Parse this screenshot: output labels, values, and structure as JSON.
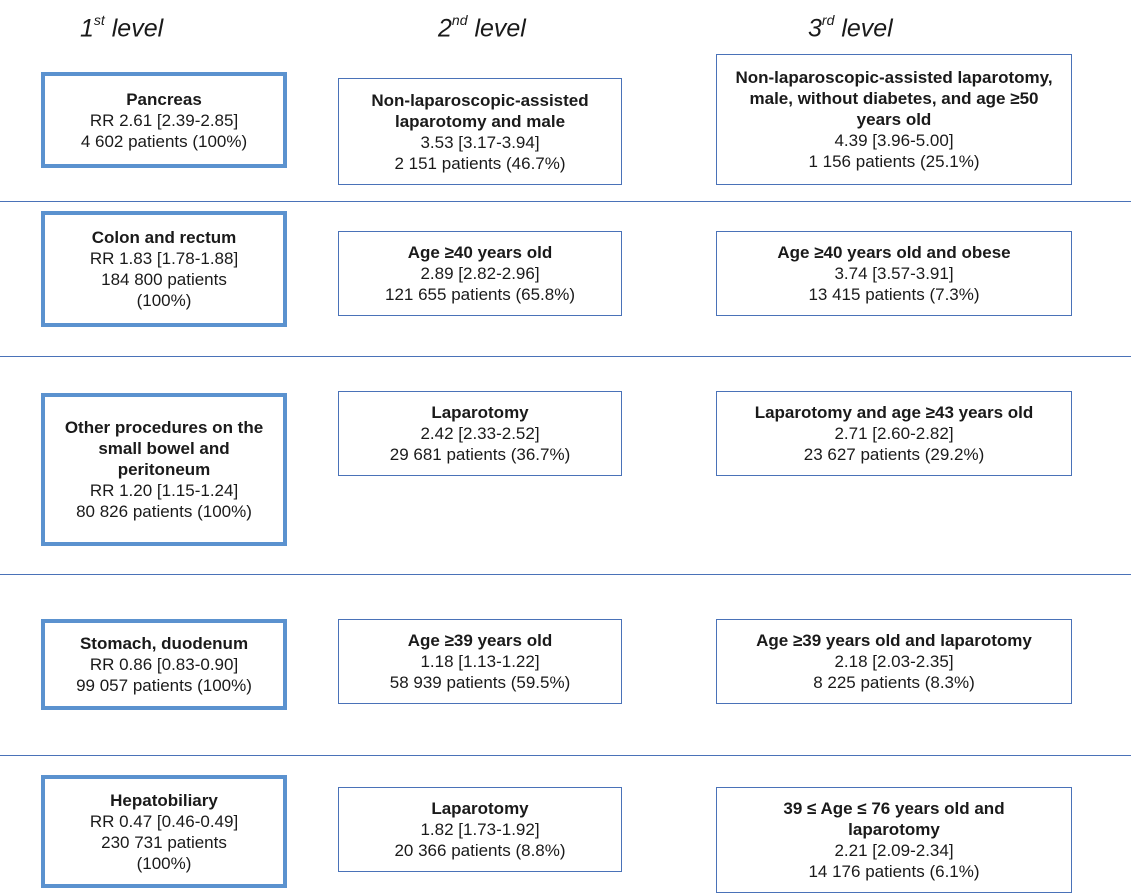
{
  "headers": [
    {
      "num": "1",
      "sup": "st",
      "word": "level"
    },
    {
      "num": "2",
      "sup": "nd",
      "word": "level"
    },
    {
      "num": "3",
      "sup": "rd",
      "word": "level"
    }
  ],
  "rows": [
    {
      "l1": {
        "title": "Pancreas",
        "lines": [
          "RR 2.61 [2.39-2.85]",
          "4 602 patients (100%)"
        ]
      },
      "l2": {
        "title": "Non-laparoscopic-assisted laparotomy and male",
        "lines": [
          "3.53 [3.17-3.94]",
          "2 151 patients (46.7%)"
        ]
      },
      "l3": {
        "title": "Non-laparoscopic-assisted laparotomy, male, without diabetes, and age ≥50 years old",
        "lines": [
          "4.39 [3.96-5.00]",
          "1 156 patients (25.1%)"
        ]
      }
    },
    {
      "l1": {
        "title": "Colon and rectum",
        "lines": [
          "RR 1.83 [1.78-1.88]",
          "184 800 patients",
          "(100%)"
        ]
      },
      "l2": {
        "title": "Age ≥40 years old",
        "lines": [
          "2.89 [2.82-2.96]",
          "121 655 patients (65.8%)"
        ]
      },
      "l3": {
        "title": "Age ≥40 years old and obese",
        "lines": [
          "3.74 [3.57-3.91]",
          "13 415 patients (7.3%)"
        ]
      }
    },
    {
      "l1": {
        "title": "Other procedures on the small bowel and peritoneum",
        "lines": [
          "RR 1.20 [1.15-1.24]",
          "80 826 patients (100%)"
        ]
      },
      "l2": {
        "title": "Laparotomy",
        "lines": [
          "2.42 [2.33-2.52]",
          "29 681 patients (36.7%)"
        ]
      },
      "l3": {
        "title": "Laparotomy and age ≥43 years old",
        "lines": [
          "2.71 [2.60-2.82]",
          "23 627 patients (29.2%)"
        ]
      }
    },
    {
      "l1": {
        "title": "Stomach, duodenum",
        "lines": [
          "RR 0.86 [0.83-0.90]",
          "99 057 patients (100%)"
        ]
      },
      "l2": {
        "title": "Age ≥39 years old",
        "lines": [
          "1.18 [1.13-1.22]",
          "58 939 patients (59.5%)"
        ]
      },
      "l3": {
        "title": "Age ≥39 years old and laparotomy",
        "lines": [
          "2.18 [2.03-2.35]",
          "8 225 patients (8.3%)"
        ]
      }
    },
    {
      "l1": {
        "title": "Hepatobiliary",
        "lines": [
          "RR 0.47 [0.46-0.49]",
          "230 731 patients",
          "(100%)"
        ]
      },
      "l2": {
        "title": "Laparotomy",
        "lines": [
          "1.82 [1.73-1.92]",
          "20 366 patients (8.8%)"
        ]
      },
      "l3": {
        "title": "39 ≤ Age ≤ 76 years old and laparotomy",
        "lines": [
          "2.21 [2.09-2.34]",
          "14 176 patients (6.1%)"
        ]
      }
    }
  ],
  "colors": {
    "level1_border": "#5b92cf",
    "box_border": "#4a72b8",
    "separator": "#4a72b8"
  }
}
